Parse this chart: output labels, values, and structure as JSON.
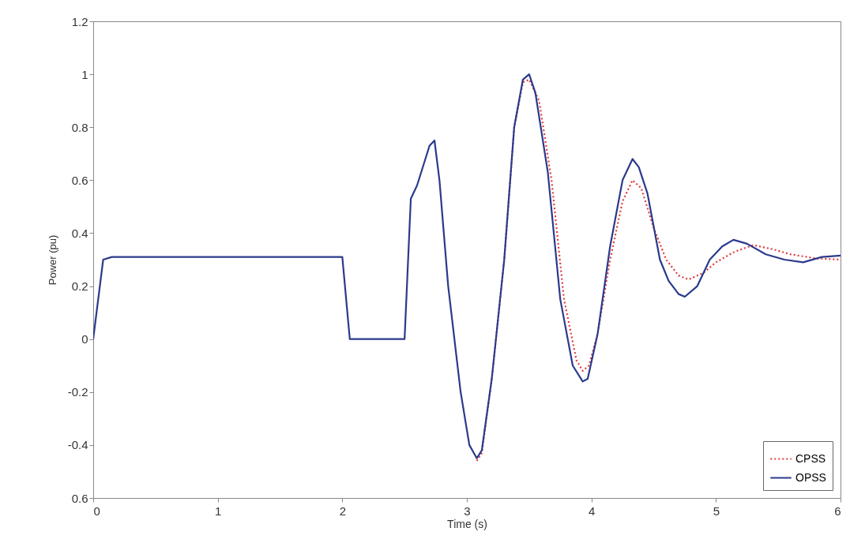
{
  "chart_data": {
    "type": "line",
    "xlabel": "Time (s)",
    "ylabel": "Power (pu)",
    "xlim": [
      0,
      6
    ],
    "xticks": [
      0,
      1,
      2,
      3,
      4,
      5,
      6
    ],
    "ylim": [
      -0.6,
      1.2
    ],
    "yticks": [
      {
        "value": -0.6,
        "label": "0.6"
      },
      -0.4,
      -0.2,
      0,
      0.2,
      0.4,
      0.6,
      0.8,
      1,
      1.2
    ],
    "grid": false,
    "legend": "bottom right",
    "marker": "none",
    "series": [
      {
        "name": "CPSS",
        "color": "#e03a3a",
        "line_style": "dotted",
        "x": [
          3.08,
          3.12,
          3.2,
          3.3,
          3.38,
          3.45,
          3.5,
          3.58,
          3.68,
          3.78,
          3.88,
          3.93,
          3.98,
          4.05,
          4.15,
          4.25,
          4.33,
          4.4,
          4.5,
          4.6,
          4.7,
          4.78,
          4.9,
          5.0,
          5.15,
          5.3,
          5.45,
          5.6,
          5.8,
          6.0
        ],
        "values": [
          -0.46,
          -0.43,
          -0.15,
          0.3,
          0.8,
          0.97,
          0.98,
          0.9,
          0.6,
          0.15,
          -0.08,
          -0.12,
          -0.1,
          0.02,
          0.3,
          0.52,
          0.6,
          0.57,
          0.42,
          0.3,
          0.24,
          0.225,
          0.25,
          0.29,
          0.33,
          0.355,
          0.34,
          0.32,
          0.305,
          0.3
        ]
      },
      {
        "name": "OPSS",
        "color": "#2b3a8c",
        "line_style": "solid",
        "x": [
          0,
          0.08,
          0.15,
          2.0,
          2.06,
          2.5,
          2.55,
          2.6,
          2.7,
          2.74,
          2.78,
          2.85,
          2.95,
          3.02,
          3.08,
          3.12,
          3.2,
          3.3,
          3.38,
          3.45,
          3.5,
          3.55,
          3.65,
          3.75,
          3.85,
          3.93,
          3.97,
          4.05,
          4.15,
          4.25,
          4.33,
          4.38,
          4.45,
          4.55,
          4.62,
          4.7,
          4.75,
          4.85,
          4.95,
          5.05,
          5.14,
          5.25,
          5.4,
          5.55,
          5.7,
          5.85,
          6.0
        ],
        "values": [
          0,
          0.3,
          0.31,
          0.31,
          0,
          0,
          0.53,
          0.58,
          0.73,
          0.75,
          0.6,
          0.2,
          -0.2,
          -0.4,
          -0.45,
          -0.42,
          -0.15,
          0.3,
          0.8,
          0.98,
          1.0,
          0.93,
          0.63,
          0.15,
          -0.1,
          -0.16,
          -0.15,
          0.02,
          0.35,
          0.6,
          0.68,
          0.65,
          0.55,
          0.3,
          0.22,
          0.17,
          0.16,
          0.2,
          0.3,
          0.35,
          0.375,
          0.36,
          0.32,
          0.3,
          0.29,
          0.31,
          0.315
        ]
      }
    ]
  }
}
